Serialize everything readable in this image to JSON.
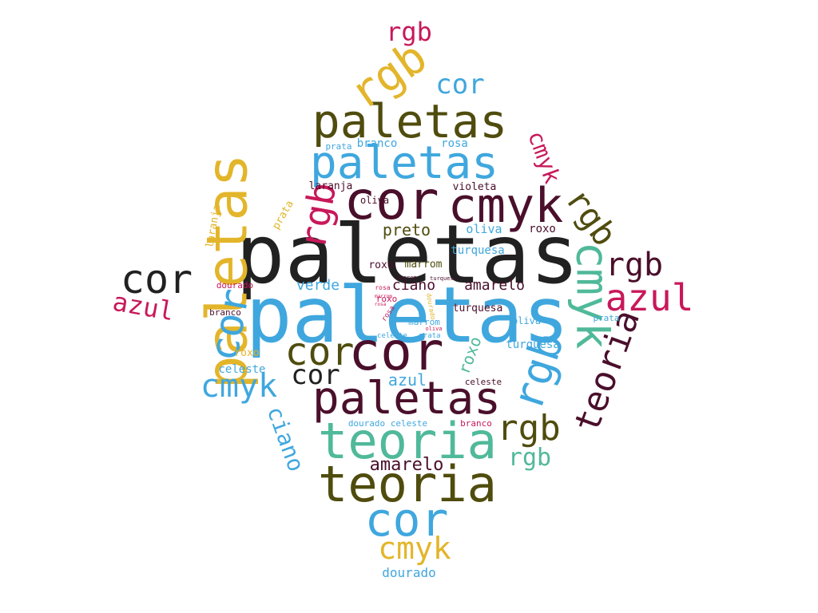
{
  "colors": {
    "black": "#212121",
    "maroon": "#4a0f2b",
    "olive": "#4f4c0e",
    "blue": "#3fa7de",
    "yellow": "#e3b52a",
    "teal": "#50b99a",
    "crimson": "#c8185a"
  },
  "words": [
    {
      "text": "paletas",
      "color": "black"
    },
    {
      "text": "paletas",
      "color": "blue"
    },
    {
      "text": "paletas",
      "color": "olive"
    },
    {
      "text": "paletas",
      "color": "blue"
    },
    {
      "text": "paletas",
      "color": "maroon"
    },
    {
      "text": "paletas",
      "color": "yellow"
    },
    {
      "text": "cor",
      "color": "maroon"
    },
    {
      "text": "cmyk",
      "color": "maroon"
    },
    {
      "text": "cmyk",
      "color": "teal"
    },
    {
      "text": "rgb",
      "color": "yellow"
    },
    {
      "text": "rgb",
      "color": "crimson"
    },
    {
      "text": "cor",
      "color": "blue"
    },
    {
      "text": "cmyk",
      "color": "crimson"
    },
    {
      "text": "rgb",
      "color": "olive"
    },
    {
      "text": "rgb",
      "color": "maroon"
    },
    {
      "text": "azul",
      "color": "crimson"
    },
    {
      "text": "teoria",
      "color": "maroon"
    },
    {
      "text": "rgb",
      "color": "blue"
    },
    {
      "text": "rgb",
      "color": "olive"
    },
    {
      "text": "rgb",
      "color": "teal"
    },
    {
      "text": "cor",
      "color": "black"
    },
    {
      "text": "azul",
      "color": "crimson"
    },
    {
      "text": "cor",
      "color": "blue"
    },
    {
      "text": "rgb",
      "color": "crimson"
    },
    {
      "text": "cor",
      "color": "olive"
    },
    {
      "text": "cor",
      "color": "maroon"
    },
    {
      "text": "cor",
      "color": "black"
    },
    {
      "text": "cmyk",
      "color": "blue"
    },
    {
      "text": "teoria",
      "color": "teal"
    },
    {
      "text": "teoria",
      "color": "olive"
    },
    {
      "text": "cor",
      "color": "blue"
    },
    {
      "text": "cmyk",
      "color": "yellow"
    },
    {
      "text": "dourado",
      "color": "blue"
    },
    {
      "text": "amarelo",
      "color": "maroon"
    },
    {
      "text": "ciano",
      "color": "blue"
    },
    {
      "text": "prata",
      "color": "blue"
    },
    {
      "text": "branco",
      "color": "blue"
    },
    {
      "text": "rosa",
      "color": "blue"
    },
    {
      "text": "laranja",
      "color": "maroon"
    },
    {
      "text": "violeta",
      "color": "maroon"
    },
    {
      "text": "oliva",
      "color": "maroon"
    },
    {
      "text": "laranja",
      "color": "yellow"
    },
    {
      "text": "prata",
      "color": "yellow"
    },
    {
      "text": "preto",
      "color": "olive"
    },
    {
      "text": "oliva",
      "color": "blue"
    },
    {
      "text": "roxo",
      "color": "maroon"
    },
    {
      "text": "turquesa",
      "color": "blue"
    },
    {
      "text": "roxo",
      "color": "maroon"
    },
    {
      "text": "marrom",
      "color": "olive"
    },
    {
      "text": "verde",
      "color": "blue"
    },
    {
      "text": "ciano",
      "color": "maroon"
    },
    {
      "text": "amarelo",
      "color": "maroon"
    },
    {
      "text": "dourado",
      "color": "crimson"
    },
    {
      "text": "marrom",
      "color": "maroon"
    },
    {
      "text": "turquesa",
      "color": "maroon"
    },
    {
      "text": "rosa",
      "color": "crimson"
    },
    {
      "text": "roxo",
      "color": "crimson"
    },
    {
      "text": "branco",
      "color": "maroon"
    },
    {
      "text": "rosa",
      "color": "crimson"
    },
    {
      "text": "dourado",
      "color": "yellow"
    },
    {
      "text": "turquesa",
      "color": "maroon"
    },
    {
      "text": "marrom",
      "color": "blue"
    },
    {
      "text": "oliva",
      "color": "blue"
    },
    {
      "text": "oliva",
      "color": "crimson"
    },
    {
      "text": "prata",
      "color": "blue"
    },
    {
      "text": "celeste",
      "color": "blue"
    },
    {
      "text": "prata",
      "color": "blue"
    },
    {
      "text": "turquesa",
      "color": "blue"
    },
    {
      "text": "roxo",
      "color": "yellow"
    },
    {
      "text": "celeste",
      "color": "blue"
    },
    {
      "text": "azul",
      "color": "blue"
    },
    {
      "text": "celeste",
      "color": "maroon"
    },
    {
      "text": "roxo",
      "color": "teal"
    },
    {
      "text": "dourado",
      "color": "blue"
    },
    {
      "text": "celeste",
      "color": "blue"
    },
    {
      "text": "branco",
      "color": "crimson"
    },
    {
      "text": "marrom",
      "color": "crimson"
    },
    {
      "text": "rosa",
      "color": "crimson"
    }
  ]
}
